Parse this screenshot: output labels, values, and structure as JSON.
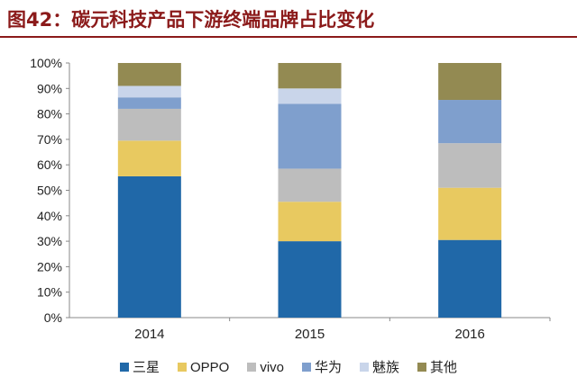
{
  "title": "图42：碳元科技产品下游终端品牌占比变化",
  "chart_data": {
    "type": "bar",
    "stacked": true,
    "categories": [
      "2014",
      "2015",
      "2016"
    ],
    "yticks": [
      "0%",
      "10%",
      "20%",
      "30%",
      "40%",
      "50%",
      "60%",
      "70%",
      "80%",
      "90%",
      "100%"
    ],
    "ylim": [
      0,
      100
    ],
    "series": [
      {
        "name": "三星",
        "color": "#2068A8",
        "values": [
          55.5,
          30,
          30.5
        ]
      },
      {
        "name": "OPPO",
        "color": "#E8C960",
        "values": [
          14,
          15.5,
          20.5
        ]
      },
      {
        "name": "vivo",
        "color": "#BDBDBD",
        "values": [
          12.5,
          13,
          17.5
        ]
      },
      {
        "name": "华为",
        "color": "#7F9FCD",
        "values": [
          4.5,
          25.5,
          17
        ]
      },
      {
        "name": "魅族",
        "color": "#C9D5EA",
        "values": [
          4.5,
          6,
          0
        ]
      },
      {
        "name": "其他",
        "color": "#938A52",
        "values": [
          9,
          10,
          14.5
        ]
      }
    ],
    "legend_position": "bottom",
    "grid": false
  }
}
